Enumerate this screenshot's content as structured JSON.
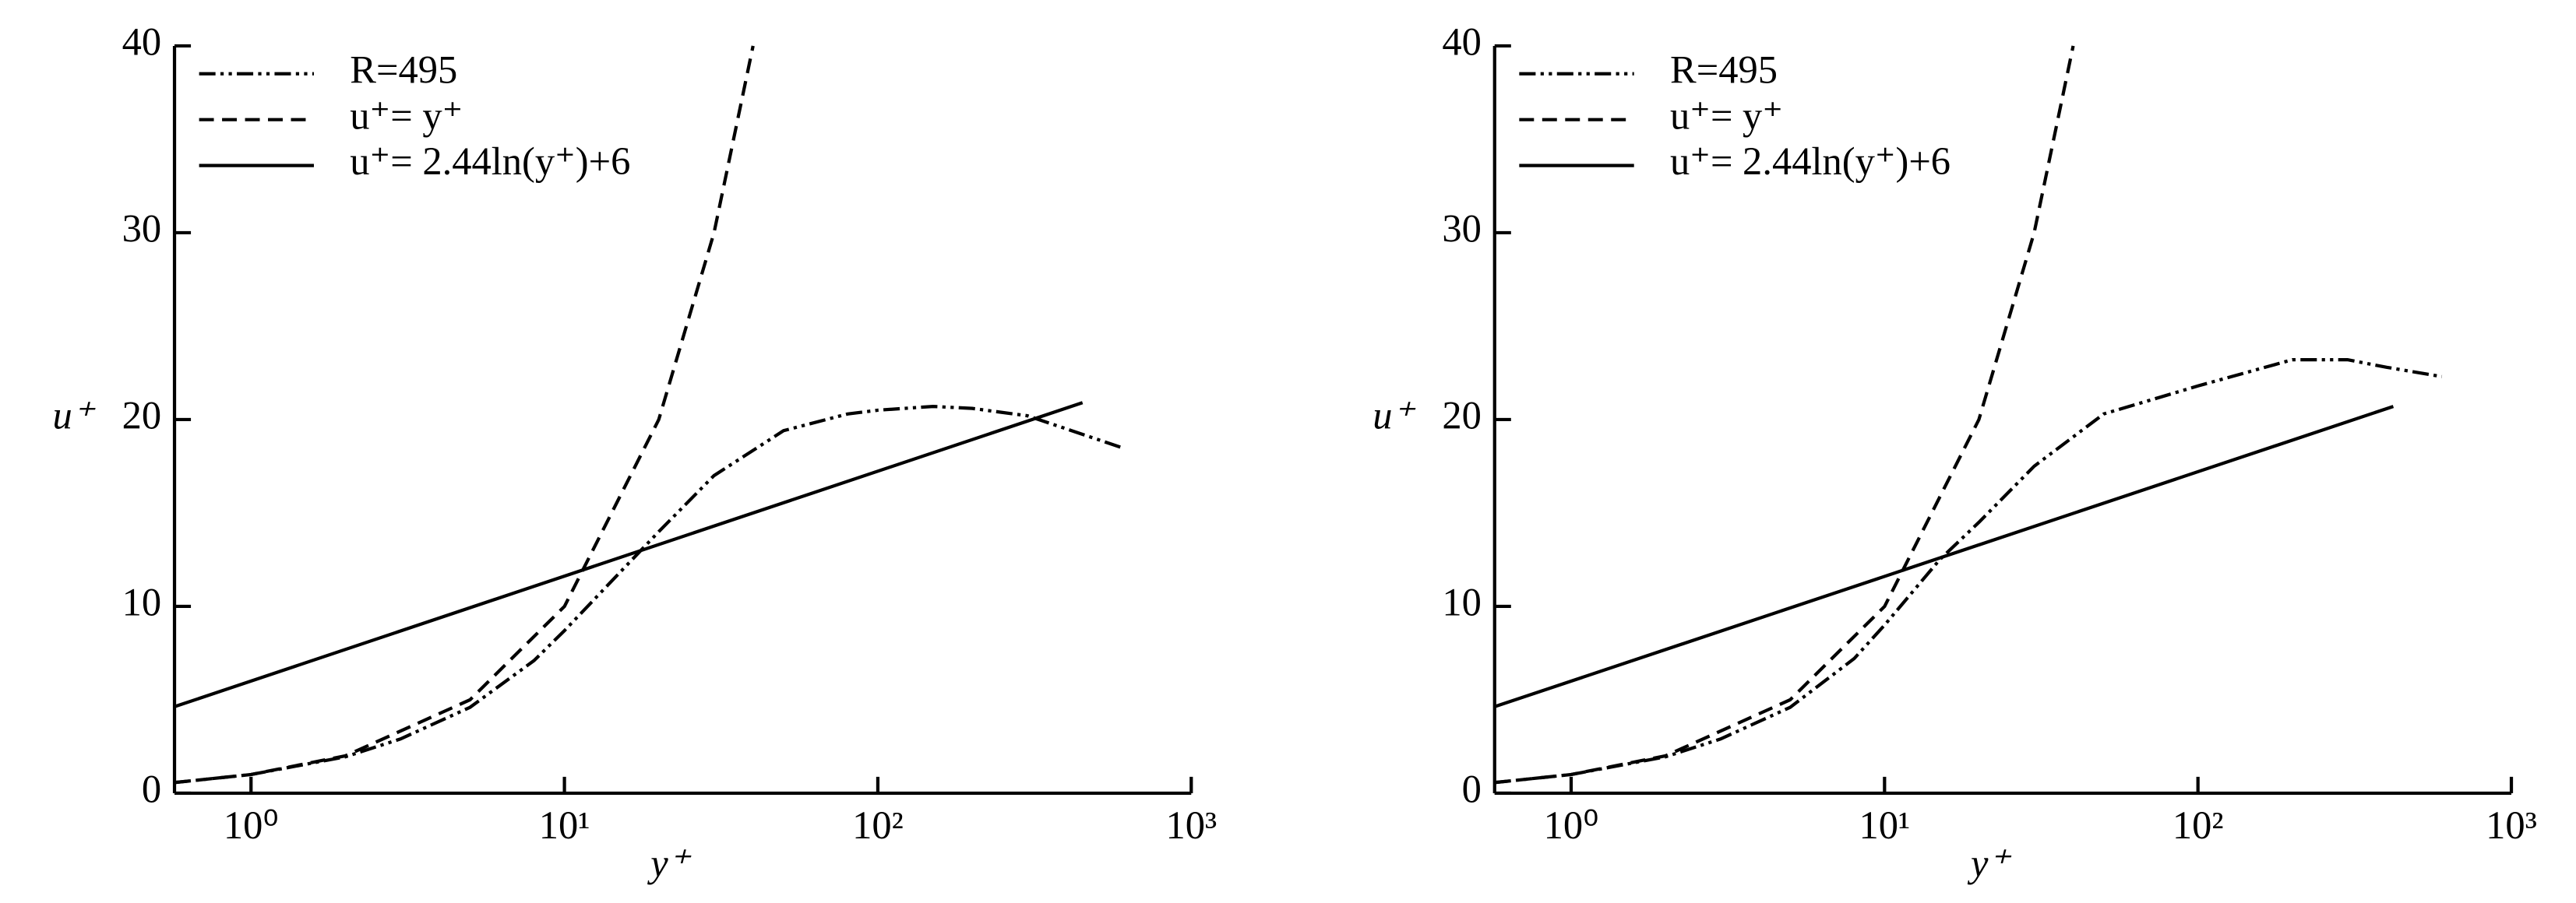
{
  "chart_data": [
    {
      "type": "line",
      "x_label": "y⁺",
      "y_label": "u⁺",
      "x_scale": "log",
      "xlim": [
        0.57,
        1000
      ],
      "ylim": [
        0,
        40
      ],
      "xticks": [
        {
          "value": 1,
          "label": "10⁰"
        },
        {
          "value": 10,
          "label": "10¹"
        },
        {
          "value": 100,
          "label": "10²"
        },
        {
          "value": 1000,
          "label": "10³"
        }
      ],
      "yticks": [
        0,
        10,
        20,
        30,
        40
      ],
      "legend": "top-left",
      "series": [
        {
          "name": "R=495",
          "color": "#000000",
          "style": "dash-dot-dot",
          "x": [
            0.57,
            1,
            2,
            3,
            5,
            8,
            10,
            15,
            20,
            30,
            50,
            80,
            100,
            150,
            200,
            300,
            400,
            600
          ],
          "values": [
            0.57,
            1.0,
            1.95,
            2.9,
            4.6,
            7.1,
            8.7,
            11.8,
            14.0,
            17.0,
            19.4,
            20.3,
            20.5,
            20.7,
            20.6,
            20.2,
            19.5,
            18.5
          ]
        },
        {
          "name": "u⁺= y⁺",
          "color": "#000000",
          "style": "dashed",
          "x": [
            0.57,
            1,
            2,
            5,
            10,
            20,
            30,
            40
          ],
          "values": [
            0.57,
            1,
            2,
            5,
            10,
            20,
            30,
            40
          ]
        },
        {
          "name": "u⁺= 2.44ln(y⁺)+6",
          "color": "#000000",
          "style": "solid",
          "x": [
            0.57,
            450
          ],
          "values": [
            4.63,
            20.9
          ]
        }
      ]
    },
    {
      "type": "line",
      "x_label": "y⁺",
      "y_label": "u⁺",
      "x_scale": "log",
      "xlim": [
        0.57,
        1000
      ],
      "ylim": [
        0,
        40
      ],
      "xticks": [
        {
          "value": 1,
          "label": "10⁰"
        },
        {
          "value": 10,
          "label": "10¹"
        },
        {
          "value": 100,
          "label": "10²"
        },
        {
          "value": 1000,
          "label": "10³"
        }
      ],
      "yticks": [
        0,
        10,
        20,
        30,
        40
      ],
      "legend": "top-left",
      "series": [
        {
          "name": "R=495",
          "color": "#000000",
          "style": "dash-dot-dot",
          "x": [
            0.57,
            1,
            2,
            3,
            5,
            8,
            10,
            15,
            20,
            30,
            50,
            100,
            200,
            300,
            400,
            600
          ],
          "values": [
            0.57,
            1.0,
            1.95,
            2.9,
            4.6,
            7.2,
            9.0,
            12.5,
            14.5,
            17.5,
            20.3,
            21.8,
            23.2,
            23.2,
            22.8,
            22.3
          ]
        },
        {
          "name": "u⁺= y⁺",
          "color": "#000000",
          "style": "dashed",
          "x": [
            0.57,
            1,
            2,
            5,
            10,
            20,
            30,
            40
          ],
          "values": [
            0.57,
            1,
            2,
            5,
            10,
            20,
            30,
            40
          ]
        },
        {
          "name": "u⁺= 2.44ln(y⁺)+6",
          "color": "#000000",
          "style": "solid",
          "x": [
            0.57,
            420
          ],
          "values": [
            4.63,
            20.7
          ]
        }
      ]
    }
  ]
}
